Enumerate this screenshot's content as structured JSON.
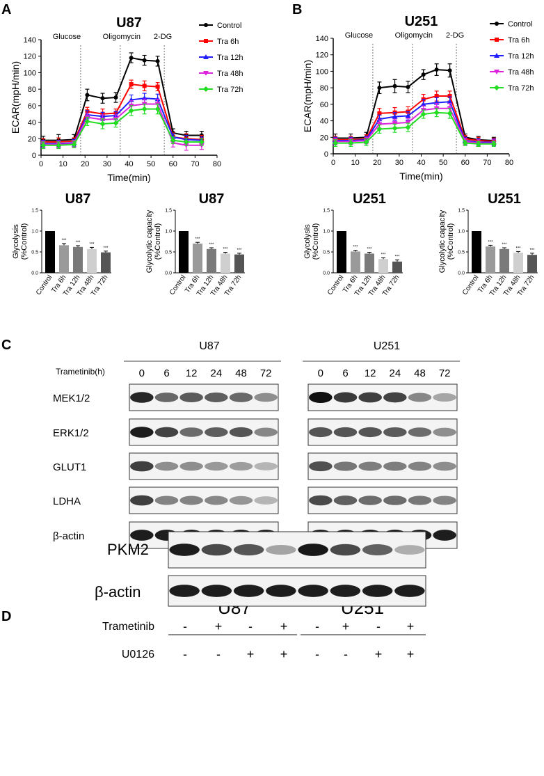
{
  "panel_labels": [
    "A",
    "B",
    "C",
    "D"
  ],
  "chart_data": [
    {
      "type": "line",
      "panel": "A",
      "title": "U87",
      "xlabel": "Time(min)",
      "ylabel": "ECAR(mpH/min)",
      "xlim": [
        0,
        80
      ],
      "ylim": [
        0,
        140
      ],
      "xticks": [
        0,
        10,
        20,
        30,
        40,
        50,
        60,
        70,
        80
      ],
      "yticks": [
        0,
        20,
        40,
        60,
        80,
        100,
        120,
        140
      ],
      "phases": [
        {
          "label": "Glucose",
          "x": 18
        },
        {
          "label": "Oligomycin",
          "x": 36
        },
        {
          "label": "2-DG",
          "x": 56
        }
      ],
      "x": [
        1,
        8,
        15,
        21,
        28,
        34,
        41,
        47,
        53,
        60,
        66,
        73
      ],
      "series": [
        {
          "name": "Control",
          "color": "#000000",
          "marker": "circle",
          "values": [
            18,
            18,
            19,
            73,
            69,
            70,
            118,
            115,
            114,
            27,
            24,
            24
          ],
          "errors": [
            5,
            7,
            6,
            7,
            6,
            6,
            6,
            6,
            6,
            5,
            5,
            5
          ]
        },
        {
          "name": "Tra 6h",
          "color": "#ff0000",
          "marker": "square",
          "values": [
            16,
            16,
            17,
            53,
            50,
            51,
            86,
            84,
            83,
            22,
            20,
            19
          ],
          "errors": [
            4,
            5,
            4,
            5,
            6,
            5,
            5,
            6,
            5,
            5,
            6,
            5
          ]
        },
        {
          "name": "Tra 12h",
          "color": "#1e1eff",
          "marker": "triangle",
          "values": [
            14,
            14,
            15,
            49,
            47,
            48,
            67,
            69,
            68,
            22,
            19,
            18
          ],
          "errors": [
            4,
            4,
            4,
            5,
            5,
            5,
            6,
            6,
            6,
            4,
            5,
            4
          ]
        },
        {
          "name": "Tra 48h",
          "color": "#dd22dd",
          "marker": "triangle-down",
          "values": [
            13,
            13,
            14,
            46,
            43,
            44,
            60,
            62,
            62,
            15,
            12,
            12
          ],
          "errors": [
            4,
            4,
            4,
            5,
            6,
            5,
            6,
            6,
            6,
            5,
            6,
            5
          ]
        },
        {
          "name": "Tra 72h",
          "color": "#22dd22",
          "marker": "diamond",
          "values": [
            12,
            12,
            13,
            41,
            38,
            39,
            54,
            56,
            56,
            18,
            16,
            16
          ],
          "errors": [
            4,
            4,
            4,
            5,
            6,
            5,
            6,
            6,
            6,
            4,
            4,
            4
          ]
        }
      ]
    },
    {
      "type": "line",
      "panel": "B",
      "title": "U251",
      "xlabel": "Time(min)",
      "ylabel": "ECAR(mpH/min)",
      "xlim": [
        0,
        80
      ],
      "ylim": [
        0,
        140
      ],
      "xticks": [
        0,
        10,
        20,
        30,
        40,
        50,
        60,
        70,
        80
      ],
      "yticks": [
        0,
        20,
        40,
        60,
        80,
        100,
        120,
        140
      ],
      "phases": [
        {
          "label": "Glucose",
          "x": 18
        },
        {
          "label": "Oligomycin",
          "x": 36
        },
        {
          "label": "2-DG",
          "x": 56
        }
      ],
      "x": [
        1,
        8,
        15,
        21,
        28,
        34,
        41,
        47,
        53,
        60,
        66,
        73
      ],
      "series": [
        {
          "name": "Control",
          "color": "#000000",
          "marker": "circle",
          "values": [
            19,
            19,
            20,
            80,
            82,
            81,
            96,
            102,
            101,
            20,
            17,
            16
          ],
          "errors": [
            5,
            5,
            6,
            7,
            8,
            7,
            6,
            7,
            8,
            4,
            4,
            4
          ]
        },
        {
          "name": "Tra 6h",
          "color": "#ff0000",
          "marker": "square",
          "values": [
            17,
            17,
            18,
            49,
            50,
            51,
            66,
            70,
            70,
            18,
            16,
            15
          ],
          "errors": [
            4,
            4,
            5,
            6,
            6,
            6,
            6,
            6,
            6,
            4,
            4,
            4
          ]
        },
        {
          "name": "Tra 12h",
          "color": "#1e1eff",
          "marker": "triangle",
          "values": [
            16,
            16,
            17,
            42,
            45,
            46,
            60,
            62,
            63,
            16,
            14,
            14
          ],
          "errors": [
            4,
            4,
            4,
            5,
            5,
            5,
            6,
            6,
            6,
            4,
            4,
            4
          ]
        },
        {
          "name": "Tra 48h",
          "color": "#dd22dd",
          "marker": "triangle-down",
          "values": [
            15,
            15,
            16,
            36,
            37,
            38,
            53,
            55,
            55,
            15,
            13,
            13
          ],
          "errors": [
            4,
            4,
            4,
            5,
            5,
            5,
            5,
            6,
            6,
            4,
            4,
            4
          ]
        },
        {
          "name": "Tra 72h",
          "color": "#22dd22",
          "marker": "diamond",
          "values": [
            13,
            13,
            14,
            30,
            31,
            32,
            48,
            50,
            49,
            13,
            12,
            12
          ],
          "errors": [
            4,
            4,
            4,
            5,
            5,
            5,
            5,
            5,
            6,
            3,
            3,
            3
          ]
        }
      ]
    },
    {
      "type": "bar",
      "title": "U87",
      "ylabel": "Glycolysis\n(%Control)",
      "ylim": [
        0,
        1.5
      ],
      "yticks": [
        0.0,
        0.5,
        1.0,
        1.5
      ],
      "categories": [
        "Control",
        "Tra 6h",
        "Tra 12h",
        "Tra 48h",
        "Tra 72h"
      ],
      "values": [
        1.0,
        0.66,
        0.62,
        0.57,
        0.49
      ],
      "errors": [
        0,
        0.04,
        0.03,
        0.04,
        0.03
      ],
      "significance": [
        "",
        "***",
        "***",
        "***",
        "***"
      ],
      "colors": [
        "#000000",
        "#9a9a9a",
        "#7a7a7a",
        "#cfcfcf",
        "#555555"
      ]
    },
    {
      "type": "bar",
      "title": "U87",
      "ylabel": "Glycolytic capacity\n(%Control)",
      "ylim": [
        0,
        1.5
      ],
      "yticks": [
        0.0,
        0.5,
        1.0,
        1.5
      ],
      "categories": [
        "Control",
        "Tra 6h",
        "Tra 12h",
        "Tra 48h",
        "Tra 72h"
      ],
      "values": [
        1.0,
        0.7,
        0.57,
        0.46,
        0.44
      ],
      "errors": [
        0,
        0.03,
        0.03,
        0.03,
        0.03
      ],
      "significance": [
        "",
        "***",
        "***",
        "***",
        "***"
      ],
      "colors": [
        "#000000",
        "#9a9a9a",
        "#7a7a7a",
        "#cfcfcf",
        "#555555"
      ]
    },
    {
      "type": "bar",
      "title": "U251",
      "ylabel": "Glycolysis\n(%Control)",
      "ylim": [
        0,
        1.5
      ],
      "yticks": [
        0.0,
        0.5,
        1.0,
        1.5
      ],
      "categories": [
        "Control",
        "Tra 6h",
        "Tra 12h",
        "Tra 48h",
        "Tra 72h"
      ],
      "values": [
        1.0,
        0.51,
        0.46,
        0.33,
        0.27
      ],
      "errors": [
        0,
        0.03,
        0.03,
        0.03,
        0.04
      ],
      "significance": [
        "",
        "***",
        "***",
        "***",
        "***"
      ],
      "colors": [
        "#000000",
        "#9a9a9a",
        "#7a7a7a",
        "#cfcfcf",
        "#555555"
      ]
    },
    {
      "type": "bar",
      "title": "U251",
      "ylabel": "Glycolytic capacity\n(%Control)",
      "ylim": [
        0,
        1.5
      ],
      "yticks": [
        0.0,
        0.5,
        1.0,
        1.5
      ],
      "categories": [
        "Control",
        "Tra 6h",
        "Tra 12h",
        "Tra 48h",
        "Tra 72h"
      ],
      "values": [
        1.0,
        0.63,
        0.57,
        0.48,
        0.43
      ],
      "errors": [
        0,
        0.03,
        0.03,
        0.03,
        0.04
      ],
      "significance": [
        "",
        "***",
        "***",
        "***",
        "***"
      ],
      "colors": [
        "#000000",
        "#9a9a9a",
        "#7a7a7a",
        "#cfcfcf",
        "#555555"
      ]
    }
  ],
  "western_c": {
    "treatment_label": "Trametinib(h)",
    "groups": [
      {
        "cell_line": "U87",
        "timepoints": [
          "0",
          "6",
          "12",
          "24",
          "48",
          "72"
        ],
        "intensities": {
          "MEK1/2": [
            0.9,
            0.62,
            0.68,
            0.66,
            0.62,
            0.45
          ],
          "ERK1/2": [
            0.95,
            0.78,
            0.6,
            0.66,
            0.7,
            0.48
          ],
          "GLUT1": [
            0.8,
            0.45,
            0.45,
            0.4,
            0.38,
            0.28
          ],
          "LDHA": [
            0.8,
            0.5,
            0.5,
            0.48,
            0.42,
            0.28
          ],
          "β-actin": [
            0.95,
            0.95,
            0.95,
            0.95,
            0.95,
            0.95
          ]
        }
      },
      {
        "cell_line": "U251",
        "timepoints": [
          "0",
          "6",
          "12",
          "24",
          "48",
          "72"
        ],
        "intensities": {
          "MEK1/2": [
            1.0,
            0.82,
            0.8,
            0.78,
            0.48,
            0.35
          ],
          "ERK1/2": [
            0.7,
            0.7,
            0.7,
            0.68,
            0.6,
            0.45
          ],
          "GLUT1": [
            0.72,
            0.55,
            0.52,
            0.52,
            0.5,
            0.45
          ],
          "LDHA": [
            0.75,
            0.65,
            0.6,
            0.6,
            0.55,
            0.5
          ],
          "β-actin": [
            0.95,
            0.95,
            0.97,
            0.97,
            0.95,
            0.95
          ]
        }
      }
    ],
    "rows": [
      "MEK1/2",
      "ERK1/2",
      "GLUT1",
      "LDHA",
      "β-actin"
    ]
  },
  "western_d": {
    "cell_lines": [
      "U87",
      "U251"
    ],
    "rows": [
      "PKM2",
      "β-actin"
    ],
    "intensities": {
      "PKM2": [
        0.95,
        0.75,
        0.7,
        0.35,
        0.97,
        0.75,
        0.65,
        0.3
      ],
      "β-actin": [
        0.95,
        0.95,
        0.95,
        0.95,
        0.95,
        0.95,
        0.95,
        0.95
      ]
    },
    "treatments": [
      {
        "label": "Trametinib",
        "signs": [
          "-",
          "+",
          "-",
          "+",
          "-",
          "+",
          "-",
          "+"
        ]
      },
      {
        "label": "U0126",
        "signs": [
          "-",
          "-",
          "+",
          "+",
          "-",
          "-",
          "+",
          "+"
        ]
      }
    ]
  }
}
